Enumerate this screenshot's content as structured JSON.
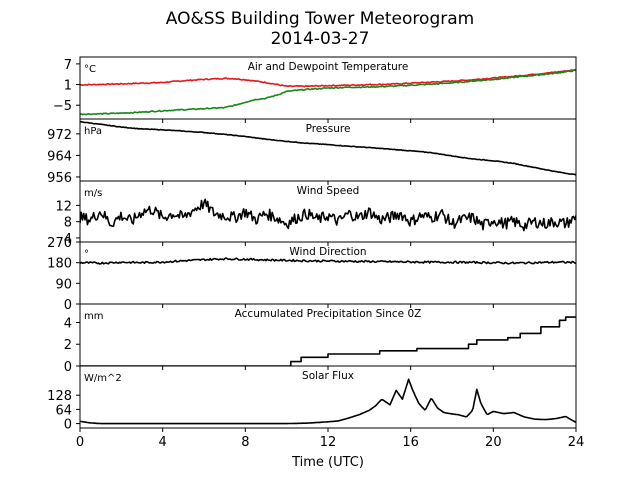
{
  "title_line1": "AO&SS Building Tower Meteorogram",
  "title_line2": "2014-03-27",
  "xlabel": "Time (UTC)",
  "colors": {
    "temperature": "#e8161b",
    "dewpoint": "#16871a",
    "series": "#000000"
  },
  "chart_data": [
    {
      "type": "line",
      "title": "Air and Dewpoint Temperature",
      "unit": "°C",
      "xlim": [
        0,
        24
      ],
      "ylim": [
        -9,
        9
      ],
      "yticks": [
        -5,
        1,
        7
      ],
      "ytick_labels": [
        "−5",
        "1",
        "7"
      ],
      "series": [
        {
          "key": "temperature",
          "x": [
            0,
            2,
            4,
            5,
            6,
            7,
            7.5,
            8,
            9,
            10,
            11,
            12,
            13,
            14,
            15,
            16,
            17,
            18,
            19,
            20,
            21,
            22,
            23,
            24
          ],
          "values": [
            0.9,
            1.2,
            1.6,
            2.1,
            2.5,
            2.8,
            2.7,
            2.4,
            1.6,
            0.5,
            0.5,
            0.7,
            0.8,
            1.0,
            1.1,
            1.4,
            1.7,
            2.0,
            2.4,
            2.9,
            3.4,
            4.0,
            4.6,
            5.3
          ]
        },
        {
          "key": "dewpoint",
          "x": [
            0,
            1,
            2,
            3,
            4,
            5,
            6,
            7,
            7.5,
            8,
            8.5,
            9,
            9.5,
            10,
            11,
            12,
            13,
            14,
            15,
            16,
            17,
            18,
            19,
            20,
            21,
            22,
            23,
            24
          ],
          "values": [
            -7.6,
            -7.5,
            -7.3,
            -7.0,
            -6.6,
            -6.3,
            -6.0,
            -5.7,
            -5.0,
            -4.1,
            -3.3,
            -3.0,
            -2.1,
            -1.0,
            -0.4,
            0.0,
            0.2,
            0.3,
            0.5,
            0.8,
            1.1,
            1.5,
            2.0,
            2.5,
            3.1,
            3.7,
            4.3,
            5.1
          ]
        }
      ]
    },
    {
      "type": "line",
      "title": "Pressure",
      "unit": "hPa",
      "xlim": [
        0,
        24
      ],
      "ylim": [
        954.5,
        977.5
      ],
      "yticks": [
        956,
        964,
        972
      ],
      "ytick_labels": [
        "956",
        "964",
        "972"
      ],
      "series": [
        {
          "key": "series",
          "x": [
            0,
            1,
            2,
            3,
            4,
            5,
            6,
            7,
            8,
            9,
            10,
            11,
            12,
            13,
            14,
            15,
            16,
            17,
            18,
            19,
            20,
            21,
            22,
            23,
            24
          ],
          "values": [
            976.5,
            975.5,
            974.5,
            973.8,
            973.5,
            973.0,
            972.5,
            971.8,
            971.0,
            970.0,
            969.2,
            968.5,
            968.0,
            967.4,
            966.9,
            966.3,
            965.7,
            965.0,
            963.8,
            962.7,
            962.0,
            961.0,
            959.5,
            958.0,
            956.8
          ]
        }
      ]
    },
    {
      "type": "line",
      "title": "Wind Speed",
      "unit": "m/s",
      "xlim": [
        0,
        24
      ],
      "ylim": [
        3,
        18
      ],
      "yticks": [
        4,
        8,
        12
      ],
      "ytick_labels": [
        "4",
        "8",
        "12"
      ],
      "series": [
        {
          "key": "series",
          "x": [
            0,
            0.5,
            1,
            1.5,
            2,
            2.5,
            3,
            3.5,
            4,
            4.5,
            5,
            5.5,
            6,
            6.5,
            7,
            7.5,
            8,
            8.5,
            9,
            9.5,
            10,
            10.5,
            11,
            11.5,
            12,
            12.5,
            13,
            13.5,
            14,
            14.5,
            15,
            15.5,
            16,
            16.5,
            17,
            17.5,
            18,
            18.5,
            19,
            19.5,
            20,
            20.5,
            21,
            21.5,
            22,
            22.5,
            23,
            23.5,
            24
          ],
          "values": [
            9.0,
            8.5,
            10.5,
            7.5,
            9.5,
            8.0,
            10.5,
            11.0,
            9.0,
            10.0,
            9.0,
            11.0,
            12.5,
            10.0,
            9.5,
            9.0,
            10.5,
            8.5,
            10.0,
            9.0,
            7.5,
            9.0,
            10.0,
            8.5,
            9.5,
            8.0,
            10.0,
            9.0,
            10.5,
            8.5,
            9.0,
            10.0,
            8.0,
            9.5,
            9.0,
            10.0,
            7.5,
            8.5,
            9.0,
            7.0,
            8.5,
            7.5,
            8.0,
            7.0,
            8.0,
            7.5,
            8.0,
            7.5,
            9.0
          ]
        }
      ]
    },
    {
      "type": "line",
      "title": "Wind Direction",
      "unit": "°",
      "xlim": [
        0,
        24
      ],
      "ylim": [
        0,
        270
      ],
      "yticks": [
        0,
        90,
        180,
        270
      ],
      "ytick_labels": [
        "0",
        "90",
        "180",
        "270"
      ],
      "series": [
        {
          "key": "series",
          "x": [
            0,
            1,
            2,
            3,
            4,
            5,
            6,
            7,
            8,
            9,
            10,
            11,
            12,
            13,
            14,
            15,
            16,
            17,
            18,
            19,
            20,
            21,
            22,
            23,
            24
          ],
          "values": [
            180,
            178,
            182,
            180,
            183,
            188,
            193,
            197,
            195,
            192,
            190,
            188,
            187,
            186,
            185,
            184,
            183,
            182,
            182,
            181,
            180,
            178,
            180,
            182,
            181
          ]
        }
      ]
    },
    {
      "type": "line",
      "title": "Accumulated Precipitation Since 0Z",
      "unit": "mm",
      "xlim": [
        0,
        24
      ],
      "ylim": [
        0,
        5.7
      ],
      "yticks": [
        0,
        2,
        4
      ],
      "ytick_labels": [
        "0",
        "2",
        "4"
      ],
      "series": [
        {
          "key": "series",
          "x": [
            0,
            10.2,
            10.2,
            10.7,
            10.7,
            12.0,
            12.0,
            14.5,
            14.5,
            16.3,
            16.3,
            18.8,
            18.8,
            19.2,
            19.2,
            20.7,
            20.7,
            21.3,
            21.3,
            22.3,
            22.3,
            23.2,
            23.2,
            23.5,
            23.5,
            24
          ],
          "values": [
            0,
            0,
            0.4,
            0.4,
            0.8,
            0.8,
            1.1,
            1.1,
            1.4,
            1.4,
            1.6,
            1.6,
            2.0,
            2.0,
            2.4,
            2.4,
            2.6,
            2.6,
            3.0,
            3.0,
            3.6,
            3.6,
            4.2,
            4.2,
            4.5,
            4.5
          ]
        }
      ]
    },
    {
      "type": "line",
      "title": "Solar Flux",
      "unit": "W/m^2",
      "xlim": [
        0,
        24
      ],
      "ylim": [
        -20,
        260
      ],
      "yticks": [
        0,
        64,
        128
      ],
      "ytick_labels": [
        "0",
        "64",
        "128"
      ],
      "series": [
        {
          "key": "series",
          "x": [
            0,
            0.5,
            1,
            2,
            4,
            6,
            8,
            9,
            10,
            11,
            11.5,
            12,
            12.5,
            13,
            13.5,
            14,
            14.3,
            14.6,
            15,
            15.3,
            15.6,
            15.9,
            16.1,
            16.4,
            16.7,
            17,
            17.3,
            17.6,
            17.9,
            18.3,
            18.7,
            19,
            19.2,
            19.4,
            19.7,
            20,
            20.5,
            21,
            21.5,
            22,
            22.5,
            23,
            23.5,
            24
          ],
          "values": [
            10,
            3,
            0,
            0,
            0,
            0,
            0,
            0,
            0,
            2,
            5,
            8,
            12,
            25,
            40,
            60,
            80,
            110,
            85,
            150,
            110,
            200,
            150,
            90,
            60,
            115,
            70,
            50,
            45,
            40,
            30,
            60,
            155,
            90,
            40,
            55,
            45,
            50,
            30,
            20,
            18,
            22,
            32,
            5
          ]
        }
      ]
    }
  ],
  "xaxis": {
    "ticks": [
      0,
      4,
      8,
      12,
      16,
      20,
      24
    ],
    "tick_labels": [
      "0",
      "4",
      "8",
      "12",
      "16",
      "20",
      "24"
    ]
  }
}
